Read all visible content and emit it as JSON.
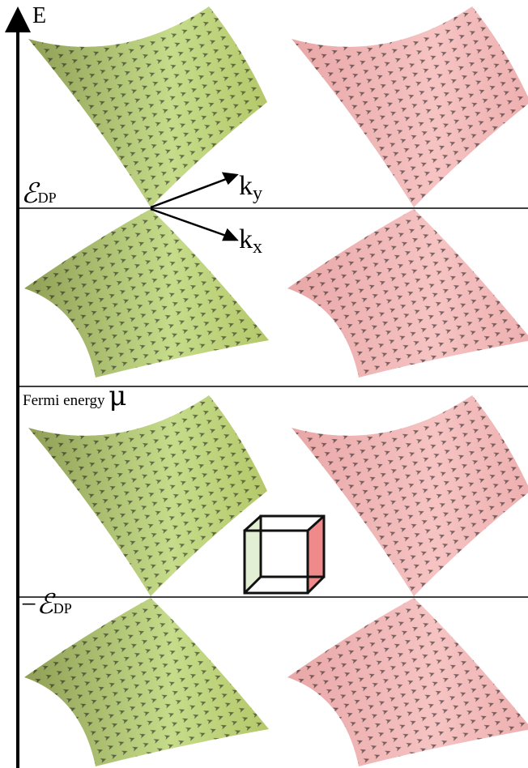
{
  "axis_label": "E",
  "upper_level": {
    "symbol": "ℰ",
    "subscript": "DP"
  },
  "momentum_axes": [
    {
      "symbol": "k",
      "subscript": "y"
    },
    {
      "symbol": "k",
      "subscript": "x"
    }
  ],
  "fermi_level": {
    "label": "Fermi energy",
    "symbol": "μ"
  },
  "lower_level": {
    "prefix": "−",
    "symbol": "ℰ",
    "subscript": "DP"
  }
}
